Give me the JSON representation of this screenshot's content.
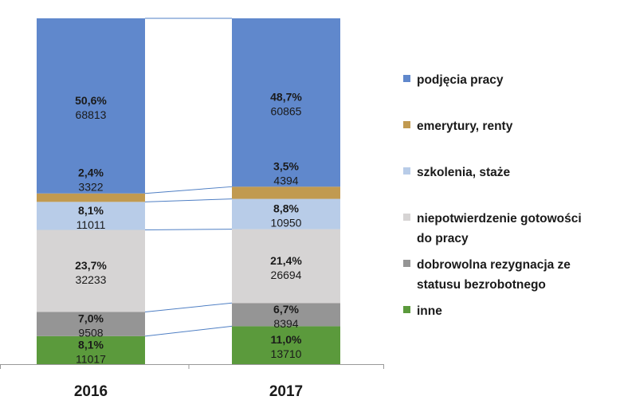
{
  "chart_data": {
    "type": "bar",
    "stacked": true,
    "percent_stacked": true,
    "categories": [
      "2016",
      "2017"
    ],
    "series": [
      {
        "name": "inne",
        "color": "#5b9a3c",
        "pct_labels": [
          "8,1%",
          "11,0%"
        ],
        "values": [
          11017,
          13710
        ]
      },
      {
        "name": "dobrowolna rezygnacja ze statusu bezrobotnego",
        "color": "#959595",
        "pct_labels": [
          "7,0%",
          "6,7%"
        ],
        "values": [
          9508,
          8394
        ]
      },
      {
        "name": "niepotwierdzenie gotowości do pracy",
        "color": "#d6d4d4",
        "pct_labels": [
          "23,7%",
          "21,4%"
        ],
        "values": [
          32233,
          26694
        ]
      },
      {
        "name": "szkolenia, staże",
        "color": "#b8cce8",
        "pct_labels": [
          "8,1%",
          "8,8%"
        ],
        "values": [
          11011,
          10950
        ]
      },
      {
        "name": "emerytury, renty",
        "color": "#c19a50",
        "pct_labels": [
          "2,4%",
          "3,5%"
        ],
        "values": [
          3322,
          4394
        ]
      },
      {
        "name": "podjęcia pracy",
        "color": "#6088cc",
        "pct_labels": [
          "50,6%",
          "48,7%"
        ],
        "values": [
          68813,
          60865
        ]
      }
    ],
    "legend": {
      "placement": "right",
      "entries": [
        {
          "label": "podjęcia pracy",
          "color": "#6088cc"
        },
        {
          "label": "emerytury, renty",
          "color": "#c19a50"
        },
        {
          "label": "szkolenia, staże",
          "color": "#b8cce8"
        },
        {
          "label": "niepotwierdzenie gotowości\ndo pracy",
          "color": "#d6d4d4"
        },
        {
          "label": "dobrowolna rezygnacja ze\nstatusu bezrobotnego",
          "color": "#959595"
        },
        {
          "label": "inne",
          "color": "#5b9a3c"
        }
      ]
    },
    "series_lines": true,
    "grid": false,
    "title": "",
    "xlabel": "",
    "ylabel": ""
  }
}
